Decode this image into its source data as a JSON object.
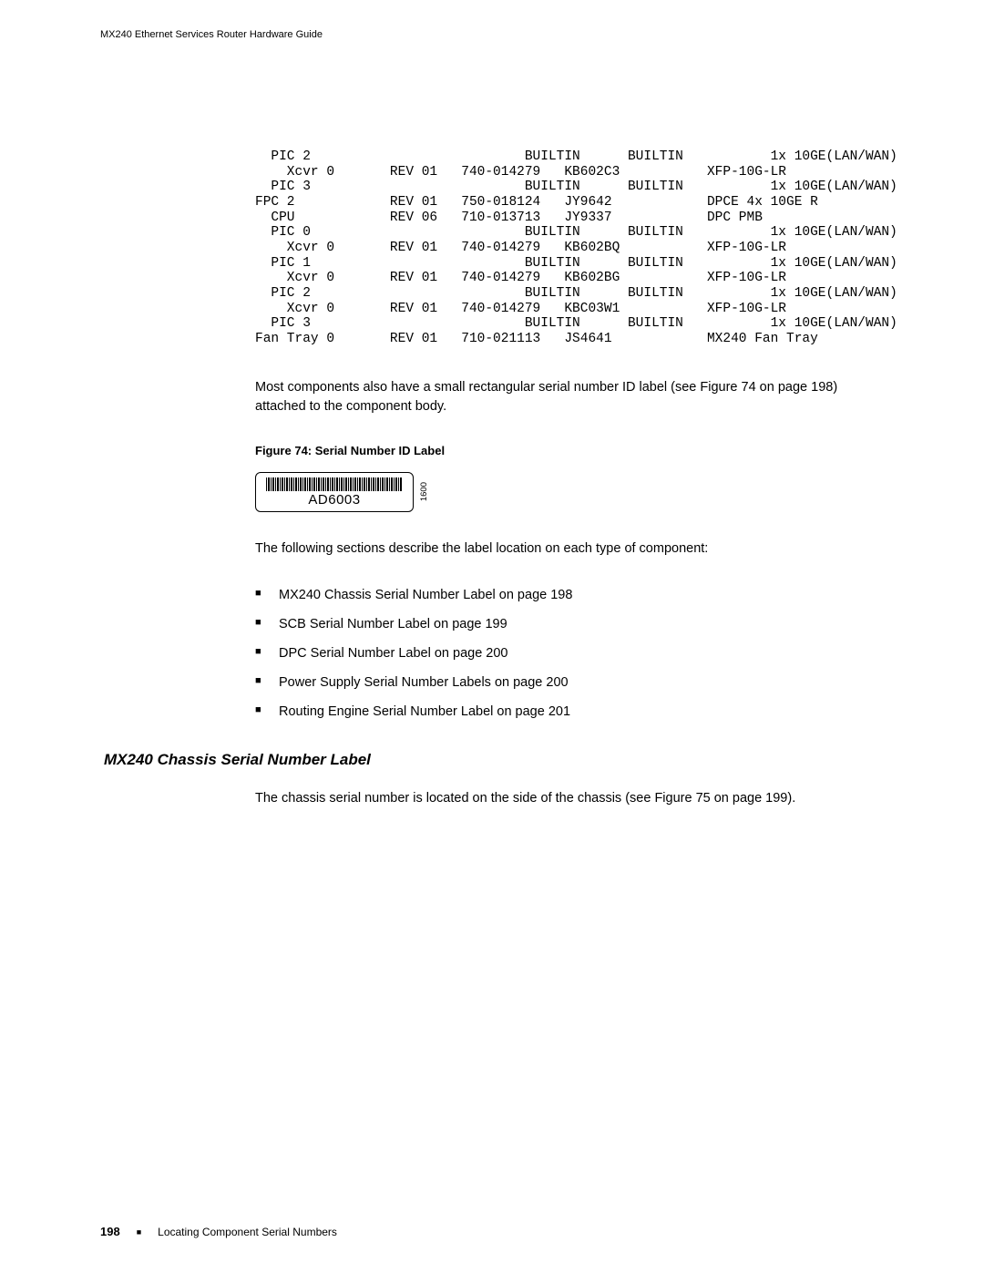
{
  "header": {
    "title": "MX240 Ethernet Services Router Hardware Guide"
  },
  "mono": {
    "lines": [
      "  PIC 2                           BUILTIN      BUILTIN           1x 10GE(LAN/WAN)",
      "    Xcvr 0       REV 01   740-014279   KB602C3           XFP-10G-LR",
      "  PIC 3                           BUILTIN      BUILTIN           1x 10GE(LAN/WAN)",
      "FPC 2            REV 01   750-018124   JY9642            DPCE 4x 10GE R",
      "  CPU            REV 06   710-013713   JY9337            DPC PMB",
      "  PIC 0                           BUILTIN      BUILTIN           1x 10GE(LAN/WAN)",
      "    Xcvr 0       REV 01   740-014279   KB602BQ           XFP-10G-LR",
      "  PIC 1                           BUILTIN      BUILTIN           1x 10GE(LAN/WAN)",
      "    Xcvr 0       REV 01   740-014279   KB602BG           XFP-10G-LR",
      "  PIC 2                           BUILTIN      BUILTIN           1x 10GE(LAN/WAN)",
      "    Xcvr 0       REV 01   740-014279   KBC03W1           XFP-10G-LR",
      "  PIC 3                           BUILTIN      BUILTIN           1x 10GE(LAN/WAN)",
      "Fan Tray 0       REV 01   710-021113   JS4641            MX240 Fan Tray"
    ]
  },
  "para1": "Most components also have a small rectangular serial number ID label (see Figure 74 on page 198) attached to the component body.",
  "figcaption": "Figure 74: Serial Number ID Label",
  "labelbox": {
    "serial": "AD6003",
    "side": "1600"
  },
  "para2": "The following sections describe the label location on each type of component:",
  "toc": [
    "MX240 Chassis Serial Number Label on page 198",
    "SCB Serial Number Label on page 199",
    "DPC Serial Number Label on page 200",
    "Power Supply Serial Number Labels on page 200",
    "Routing Engine Serial Number Label on page 201"
  ],
  "section_heading": "MX240 Chassis Serial Number Label",
  "para3": "The chassis serial number is located on the side of the chassis (see Figure 75 on page 199).",
  "footer": {
    "pagenum": "198",
    "text": "Locating Component Serial Numbers"
  }
}
